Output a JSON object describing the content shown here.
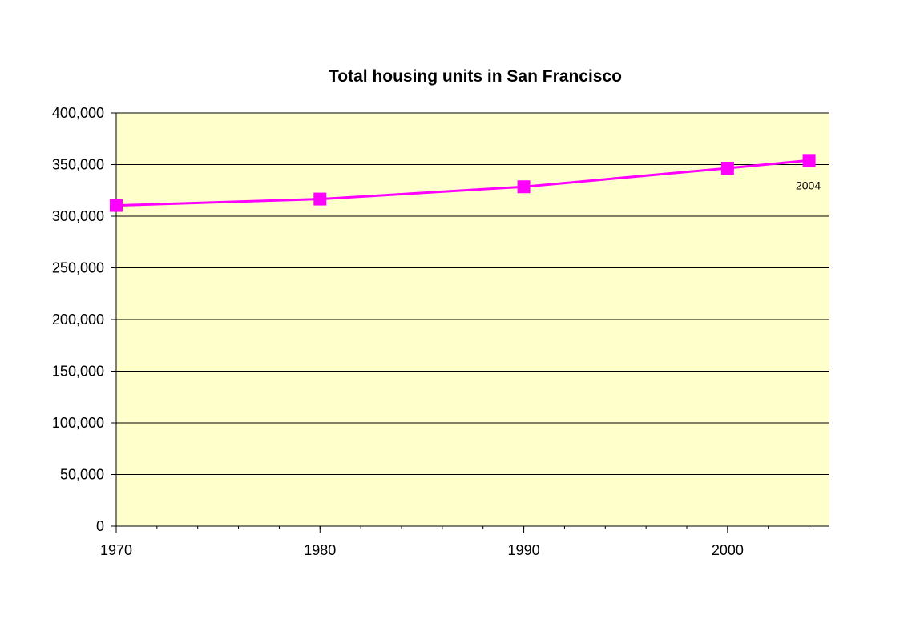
{
  "chart_data": {
    "type": "line",
    "title": "Total housing units in San Francisco",
    "xlabel": "",
    "ylabel": "",
    "x": [
      1970,
      1980,
      1990,
      2000,
      2004
    ],
    "series": [
      {
        "values": [
          310400,
          316600,
          328500,
          346500,
          354000
        ]
      }
    ],
    "xlim": [
      1970,
      2005
    ],
    "ylim": [
      0,
      400000
    ],
    "x_ticks": [
      1970,
      1980,
      1990,
      2000
    ],
    "x_tick_labels": [
      "1970",
      "1980",
      "1990",
      "2000"
    ],
    "y_ticks": [
      0,
      50000,
      100000,
      150000,
      200000,
      250000,
      300000,
      350000,
      400000
    ],
    "y_tick_labels": [
      "0",
      "50,000",
      "100,000",
      "150,000",
      "200,000",
      "250,000",
      "300,000",
      "350,000",
      "400,000"
    ],
    "annotations": [
      {
        "text": "2004",
        "x": 2004,
        "y": 354000
      }
    ],
    "grid": true,
    "legend": "none",
    "colors": {
      "plot_background": "#ffffcc",
      "line": "#ff00ff",
      "marker": "#ff00ff",
      "gridline": "#000000"
    }
  }
}
